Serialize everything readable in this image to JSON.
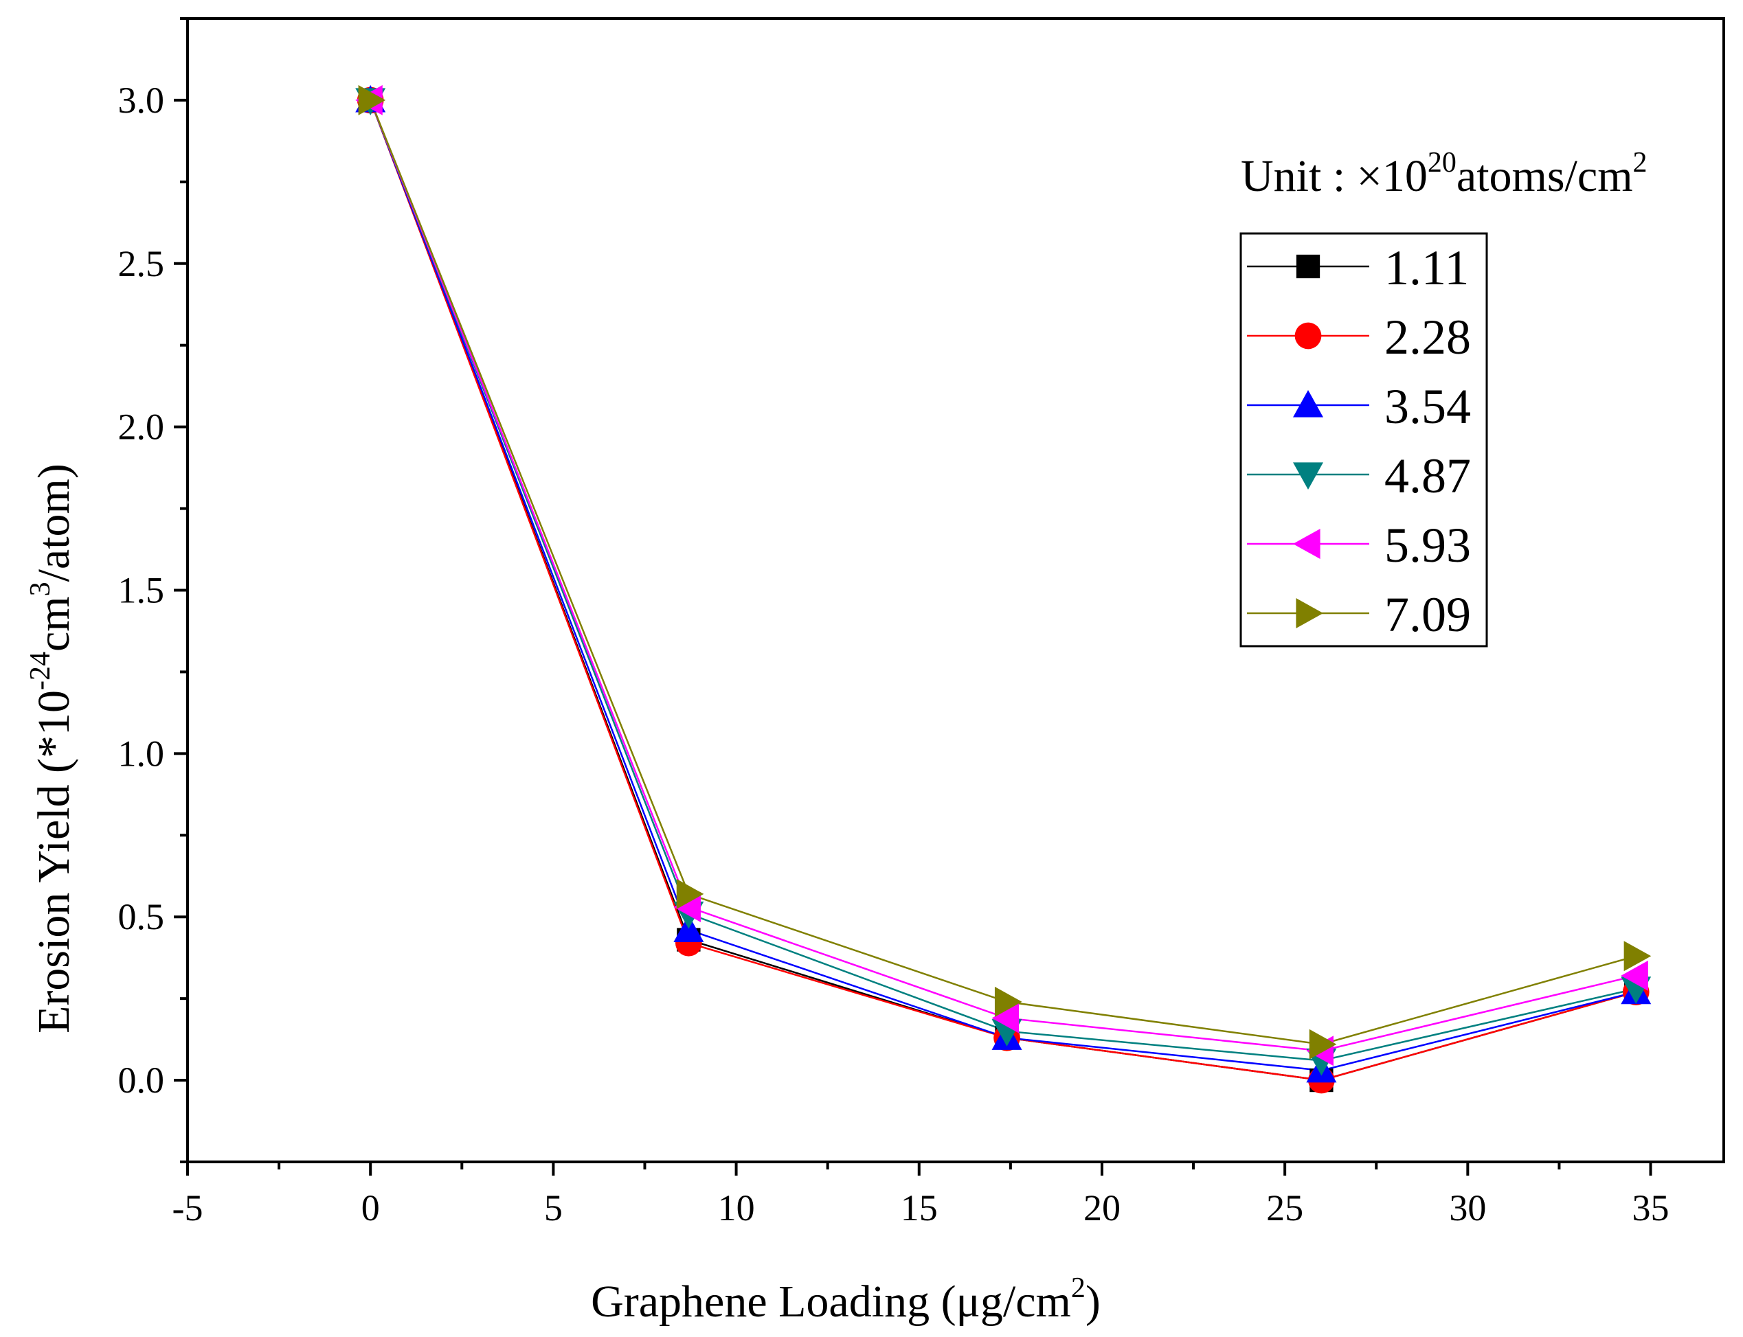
{
  "chart_data": {
    "type": "line",
    "title": "",
    "xlabel": {
      "prefix": "Graphene Loading (μg/cm",
      "sup": "2",
      "suffix": ")"
    },
    "ylabel": {
      "prefix": "Erosion Yield (*10",
      "sup1": "-24",
      "mid": "cm",
      "sup2": "3",
      "suffix": "/atom)"
    },
    "xlim": [
      -5,
      37
    ],
    "ylim": [
      -0.25,
      3.25
    ],
    "xticks": [
      -5,
      0,
      5,
      10,
      15,
      20,
      25,
      30,
      35
    ],
    "xtick_labels": [
      "-5",
      "0",
      "5",
      "10",
      "15",
      "20",
      "25",
      "30",
      "35"
    ],
    "yticks": [
      0.0,
      0.5,
      1.0,
      1.5,
      2.0,
      2.5,
      3.0
    ],
    "ytick_labels": [
      "0.0",
      "0.5",
      "1.0",
      "1.5",
      "2.0",
      "2.5",
      "3.0"
    ],
    "x": [
      0,
      8.7,
      17.4,
      26.0,
      34.6
    ],
    "grid": false,
    "legend_position": "right",
    "legend_title": {
      "prefix": "Unit : ×10",
      "sup1": "20",
      "mid": "atoms/cm",
      "sup2": "2"
    },
    "series": [
      {
        "name": "1.11",
        "marker": "square",
        "color": "#000000",
        "values": [
          3.0,
          0.43,
          0.13,
          0.0,
          0.27
        ]
      },
      {
        "name": "2.28",
        "marker": "circle",
        "color": "#ff0000",
        "values": [
          3.0,
          0.42,
          0.13,
          0.0,
          0.27
        ]
      },
      {
        "name": "3.54",
        "marker": "triangle-up",
        "color": "#0000ff",
        "values": [
          3.0,
          0.46,
          0.13,
          0.03,
          0.27
        ]
      },
      {
        "name": "4.87",
        "marker": "triangle-down",
        "color": "#008080",
        "values": [
          3.0,
          0.51,
          0.15,
          0.06,
          0.28
        ]
      },
      {
        "name": "5.93",
        "marker": "triangle-left",
        "color": "#ff00ff",
        "values": [
          3.0,
          0.53,
          0.19,
          0.09,
          0.32
        ]
      },
      {
        "name": "7.09",
        "marker": "triangle-right",
        "color": "#808000",
        "values": [
          3.0,
          0.57,
          0.24,
          0.11,
          0.38
        ]
      }
    ]
  }
}
